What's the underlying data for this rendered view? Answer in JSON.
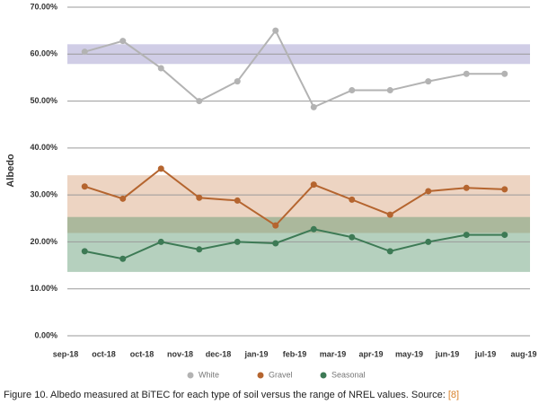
{
  "chart_data": {
    "type": "line",
    "y_label": "Albedo",
    "caption": "Figure 10. Albedo measured at BiTEC for each type of soil versus the range of NREL values. Source: ",
    "source": "[8]",
    "categories": [
      "sep-18",
      "oct-18",
      "oct-18",
      "nov-18",
      "dec-18",
      "jan-19",
      "feb-19",
      "mar-19",
      "apr-19",
      "may-19",
      "jun-19",
      "jul-19",
      "aug-19"
    ],
    "series": [
      {
        "name": "White",
        "color": "#b3b3b3",
        "values": [
          60.5,
          62.8,
          57,
          50,
          54.2,
          65,
          48.7,
          52.3,
          52.3,
          54.2,
          55.8,
          55.8,
          null
        ]
      },
      {
        "name": "Gravel",
        "color": "#b5652f",
        "values": [
          31.8,
          29.2,
          35.6,
          29.4,
          28.8,
          23.5,
          32.2,
          29,
          25.8,
          30.8,
          31.5,
          31.2,
          null
        ]
      },
      {
        "name": "Seasonal",
        "color": "#3d7a55",
        "values": [
          18,
          16.4,
          20,
          18.4,
          20,
          19.7,
          22.7,
          21,
          18,
          20,
          21.5,
          21.5,
          null
        ]
      }
    ],
    "bands": [
      {
        "low": 57.9,
        "high": 62.1,
        "color": "rgba(150,145,200,0.45)"
      },
      {
        "low": 21.9,
        "high": 34.2,
        "color": "rgba(215,160,120,0.45)"
      },
      {
        "low": 13.6,
        "high": 25.3,
        "color": "rgba(90,150,110,0.45)"
      }
    ],
    "ylim": [
      0,
      70
    ],
    "yticks": [
      {
        "value": 0,
        "label": "0.00%"
      },
      {
        "value": 10,
        "label": "10.00%"
      },
      {
        "value": 20,
        "label": "20.00%"
      },
      {
        "value": 30,
        "label": "30.00%"
      },
      {
        "value": 40,
        "label": "40.00%"
      },
      {
        "value": 50,
        "label": "50.00%"
      },
      {
        "value": 60,
        "label": "60.00%"
      },
      {
        "value": 70,
        "label": "70.00%"
      }
    ],
    "grid": true
  }
}
